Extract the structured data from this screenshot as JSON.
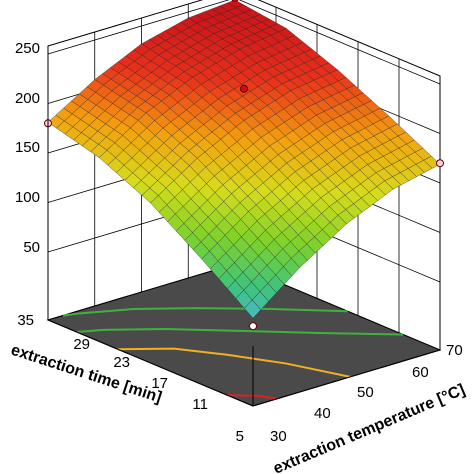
{
  "chart_data": {
    "type": "surface",
    "z_axis": {
      "ticks": [
        "250",
        "200",
        "150",
        "100",
        "50"
      ],
      "range": [
        50,
        250
      ]
    },
    "x_axis": {
      "label": "extraction time [min]",
      "ticks": [
        "35",
        "29",
        "23",
        "17",
        "11",
        "5"
      ],
      "range": [
        5,
        35
      ]
    },
    "y_axis": {
      "label": "extraction temperature [°C]",
      "ticks": [
        "70",
        "60",
        "50",
        "40",
        "30"
      ],
      "range": [
        30,
        70
      ]
    },
    "surface_z": [
      [
        70,
        107,
        137,
        158,
        169
      ],
      [
        108,
        142,
        168,
        186,
        196
      ],
      [
        143,
        174,
        198,
        214,
        221
      ],
      [
        167,
        198,
        220,
        234,
        241
      ],
      [
        181,
        210,
        232,
        244,
        248
      ]
    ],
    "surface_note": "rows: extraction time 5,11,17,23,29(35 edge); cols: temperature 30,40,50,60,70",
    "design_points": [
      {
        "time": 5,
        "temperature": 30,
        "value": 62
      },
      {
        "time": 35,
        "temperature": 30,
        "value": 180
      },
      {
        "time": 5,
        "temperature": 70,
        "value": 170
      },
      {
        "time": 35,
        "temperature": 70,
        "value": 250
      },
      {
        "time": 20,
        "temperature": 50,
        "value": 230
      }
    ],
    "floor_contours": [
      {
        "color": "#e02020"
      },
      {
        "color": "#f0b020"
      },
      {
        "color": "#40b040"
      },
      {
        "color": "#40b040"
      }
    ],
    "colormap": [
      "#4fb3e8",
      "#3fc47a",
      "#7fd22a",
      "#d6dc1c",
      "#f3a00f",
      "#e8321b",
      "#c8101a"
    ],
    "floor_color": "#4a4a4a",
    "grid": true
  }
}
